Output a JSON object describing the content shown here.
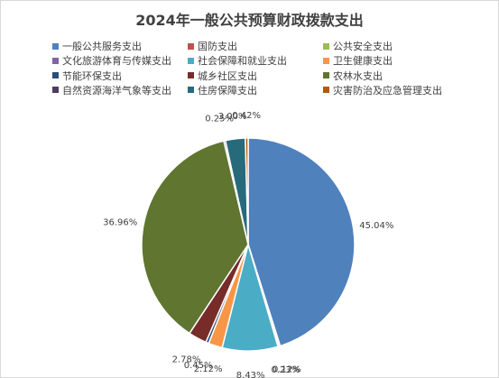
{
  "chart_data": {
    "type": "pie",
    "title": "2024年一般公共预算财政拨款支出",
    "categories": [
      "一般公共服务支出",
      "国防支出",
      "公共安全支出",
      "文化旅游体育与传媒支出",
      "社会保障和就业支出",
      "卫生健康支出",
      "节能环保支出",
      "城乡社区支出",
      "农林水支出",
      "自然资源海洋气象等支出",
      "住房保障支出",
      "灾害防治及应急管理支出"
    ],
    "values": [
      45.04,
      0.12,
      0.23,
      0.0,
      8.43,
      2.12,
      0.45,
      2.78,
      36.96,
      0.25,
      3.0,
      0.42
    ],
    "labels": [
      "45.04%",
      "0.12%",
      "0.23%",
      "",
      "8.43%",
      "2.12%",
      "0.45%",
      "2.78%",
      "36.96%",
      "0.25%",
      "3.00%",
      "0.42%"
    ],
    "colors": [
      "#4f81bd",
      "#c0504d",
      "#9bbb59",
      "#8064a2",
      "#4bacc6",
      "#f79646",
      "#2c4d75",
      "#772c2a",
      "#5f7530",
      "#4d3b62",
      "#276a7c",
      "#b65708"
    ],
    "legend_position": "top",
    "start_angle": "12 o'clock",
    "direction": "clockwise"
  }
}
